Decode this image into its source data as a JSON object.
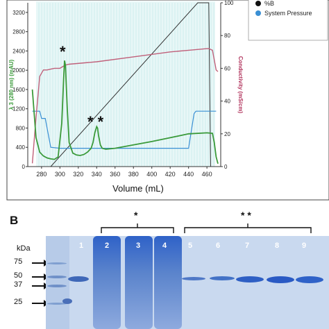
{
  "panel_b_label": "B",
  "chart_data": {
    "type": "line",
    "x": [
      270,
      274,
      278,
      282,
      286,
      290,
      294,
      298,
      302,
      304,
      305,
      306,
      308,
      310,
      314,
      318,
      322,
      326,
      330,
      334,
      336,
      338,
      340,
      341,
      342,
      344,
      346,
      350,
      360,
      380,
      400,
      420,
      440,
      460,
      466,
      468,
      470,
      472
    ],
    "xlabel": "Volume (mL)",
    "ylabel_left": "λ 3 (280 nm) (mAU)",
    "ylabel_right": "Conductivity (mS/cm)",
    "xlim": [
      265,
      475
    ],
    "ylim_left": [
      0,
      3400
    ],
    "ylim_right": [
      0,
      100
    ],
    "x_ticks": [
      280,
      300,
      320,
      340,
      360,
      380,
      400,
      420,
      440,
      460
    ],
    "y_ticks_left": [
      0,
      400,
      800,
      1200,
      1600,
      2000,
      2400,
      2800,
      3200
    ],
    "y_ticks_right": [
      0,
      20,
      40,
      60,
      80,
      100
    ],
    "legend": [
      "%B",
      "System Pressure"
    ],
    "annotations": [
      "*",
      "* *"
    ],
    "series": [
      {
        "axis": "left",
        "color": "#3a9a3a",
        "values": [
          1600,
          600,
          300,
          220,
          180,
          160,
          150,
          200,
          900,
          1800,
          2200,
          2100,
          1200,
          500,
          280,
          240,
          230,
          250,
          300,
          380,
          500,
          700,
          830,
          800,
          650,
          450,
          380,
          360,
          380,
          450,
          520,
          600,
          680,
          700,
          690,
          500,
          200,
          60
        ]
      }
    ],
    "conductivity": {
      "axis": "right",
      "color": "#c0607a",
      "x": [
        270,
        274,
        278,
        282,
        286,
        290,
        294,
        300,
        303,
        306,
        310,
        340,
        380,
        420,
        440,
        460,
        462,
        466,
        470,
        472
      ],
      "values": [
        2,
        30,
        55,
        59,
        59,
        59.5,
        60,
        60,
        61,
        62,
        62.5,
        64,
        67,
        70,
        71,
        72,
        72,
        71,
        59,
        58
      ]
    },
    "percent_b": {
      "axis": "right",
      "color": "#333333",
      "x": [
        270,
        290,
        450,
        452,
        462,
        464
      ],
      "values": [
        0,
        0,
        100,
        100,
        100,
        0
      ]
    },
    "system_pressure": {
      "axis": "left",
      "color": "#3a8fd4",
      "x": [
        270,
        276,
        278,
        280,
        284,
        290,
        300,
        320,
        340,
        360,
        400,
        440,
        446,
        448,
        460,
        465,
        470
      ],
      "values": [
        1150,
        1150,
        1150,
        1000,
        1000,
        400,
        380,
        380,
        380,
        380,
        380,
        380,
        1100,
        1150,
        1150,
        1150,
        1150
      ]
    }
  },
  "gel": {
    "kda_label": "kDa",
    "markers": [
      "75",
      "50",
      "37",
      "25"
    ],
    "lanes": [
      "1",
      "2",
      "3",
      "4",
      "5",
      "6",
      "7",
      "8",
      "9"
    ],
    "bracket_single": "*",
    "bracket_double": "* *"
  }
}
